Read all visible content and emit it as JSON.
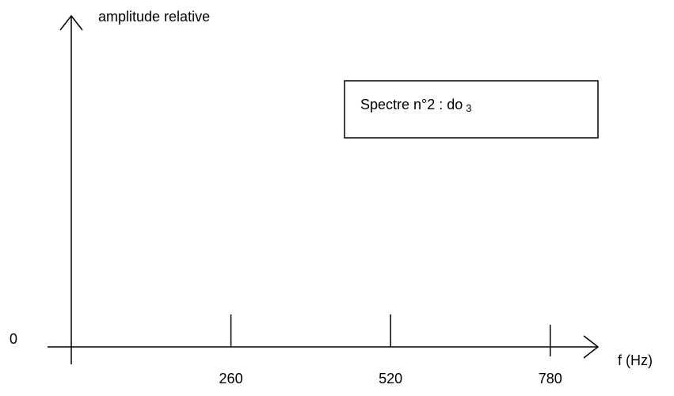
{
  "chart_data": {
    "type": "spectrum",
    "title": "Spectre n°2 : do",
    "title_subscript": "3",
    "y_label": "amplitude relative",
    "x_label": "f (Hz)",
    "xlim": [
      0,
      850
    ],
    "xticks": [
      260,
      520,
      780
    ],
    "yticks": [
      0
    ]
  }
}
